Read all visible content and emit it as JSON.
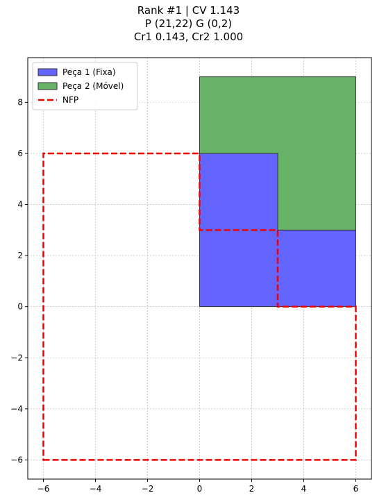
{
  "title": {
    "line1": "Rank #1 | CV 1.143",
    "line2": "P (21,22) G (0,2)",
    "line3": "Cr1 0.143, Cr2 1.000"
  },
  "chart_data": {
    "type": "polygon-plot",
    "xlim": [
      -6.6,
      6.6
    ],
    "ylim": [
      -6.75,
      9.75
    ],
    "grid": true,
    "legend_placement": "top-left",
    "x_ticks": [
      -6,
      -4,
      -2,
      0,
      2,
      4,
      6
    ],
    "y_ticks": [
      -6,
      -4,
      -2,
      0,
      2,
      4,
      6,
      8
    ],
    "x_tick_labels": [
      "−6",
      "−4",
      "−2",
      "0",
      "2",
      "4",
      "6"
    ],
    "y_tick_labels": [
      "−6",
      "−4",
      "−2",
      "0",
      "2",
      "4",
      "6",
      "8"
    ],
    "series": [
      {
        "name": "Peça 1 (Fixa)",
        "kind": "filled",
        "fill": "#6464ff",
        "stroke": "#333333",
        "points": [
          [
            0,
            0
          ],
          [
            6,
            0
          ],
          [
            6,
            3
          ],
          [
            3,
            3
          ],
          [
            3,
            6
          ],
          [
            0,
            6
          ]
        ]
      },
      {
        "name": "Peça 2 (Móvel)",
        "kind": "filled",
        "fill": "#66b266",
        "stroke": "#333333",
        "points": [
          [
            0,
            6
          ],
          [
            3,
            6
          ],
          [
            3,
            3
          ],
          [
            6,
            3
          ],
          [
            6,
            9
          ],
          [
            0,
            9
          ]
        ]
      },
      {
        "name": "NFP",
        "kind": "dashed",
        "stroke": "#ee0000",
        "points": [
          [
            -6,
            -6
          ],
          [
            6,
            -6
          ],
          [
            6,
            0
          ],
          [
            3,
            0
          ],
          [
            3,
            3
          ],
          [
            0,
            3
          ],
          [
            0,
            6
          ],
          [
            -6,
            6
          ]
        ]
      }
    ]
  }
}
